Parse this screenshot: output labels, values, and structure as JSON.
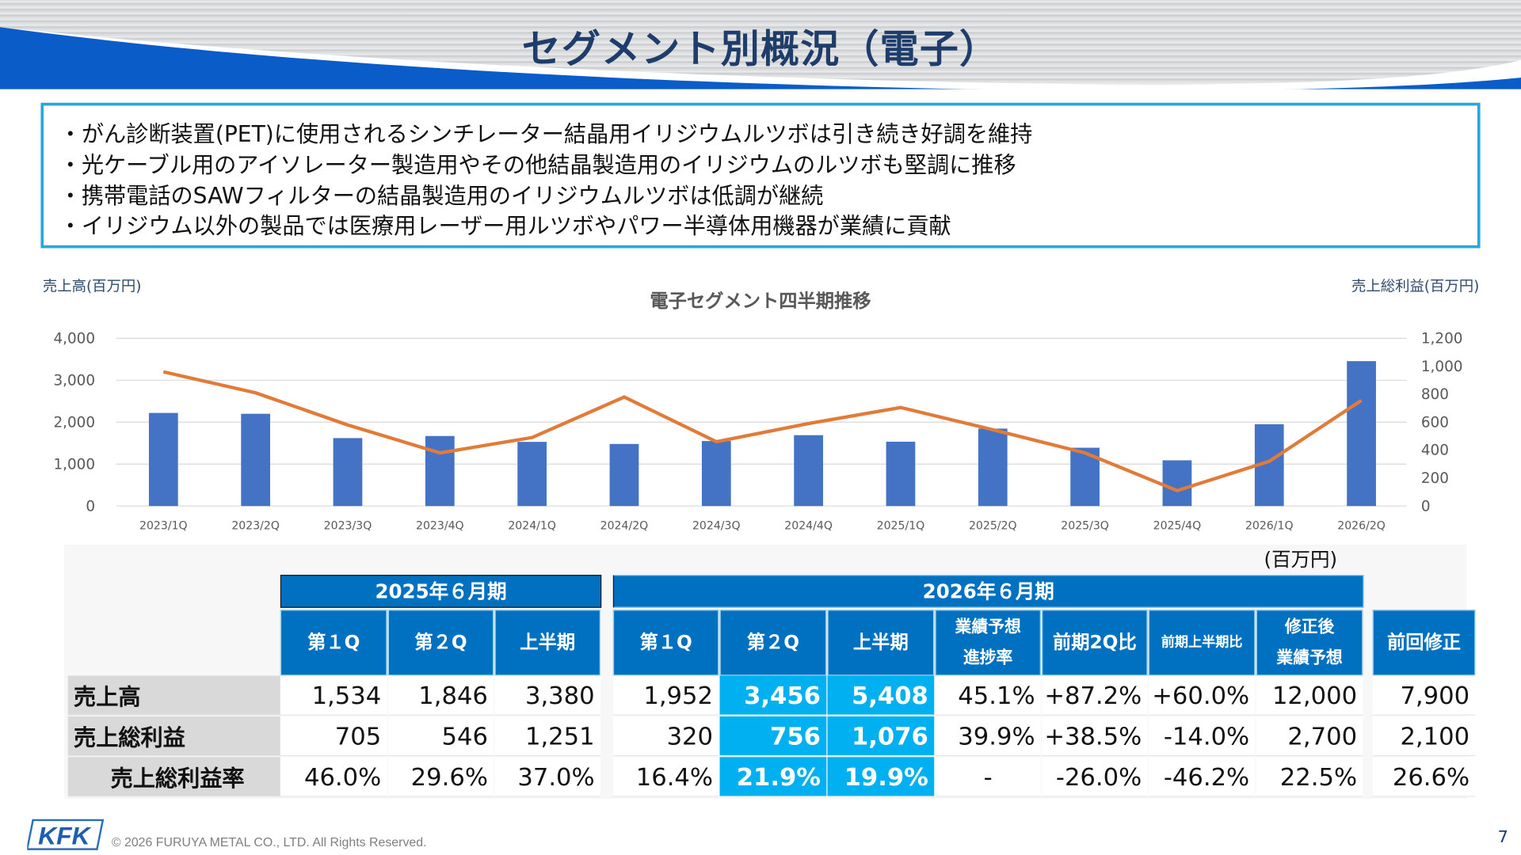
{
  "title": "セグメント別概況（電子）",
  "bullets": [
    "・がん診断装置(PET)に使用されるシンチレーター結晶用イリジウムルツボは引き続き好調を維持",
    "・光ケーブル用のアイソレーター製造用やその他結晶製造用のイリジウムのルツボも堅調に推移",
    "・携帯電話のSAWフィルターの結晶製造用のイリジウムルツボは低調が継続",
    "・イリジウム以外の製品では医療用レーザー用ルツボやパワー半導体用機器が業績に貢献"
  ],
  "chart_data": {
    "type": "bar+line",
    "title": "電子セグメント四半期推移",
    "ylabel_left": "売上高(百万円)",
    "ylabel_right": "売上総利益(百万円)",
    "ylim_left": [
      0,
      4000
    ],
    "yticks_left": [
      "4,000",
      "3,000",
      "2,000",
      "1,000",
      "0"
    ],
    "ylim_right": [
      0,
      1200
    ],
    "yticks_right": [
      "1,200",
      "1,000",
      "800",
      "600",
      "400",
      "200",
      "0"
    ],
    "grid": true,
    "legend_position": "bottom",
    "categories": [
      "2023/1Q",
      "2023/2Q",
      "2023/3Q",
      "2023/4Q",
      "2024/1Q",
      "2024/2Q",
      "2024/3Q",
      "2024/4Q",
      "2025/1Q",
      "2025/2Q",
      "2025/3Q",
      "2025/4Q",
      "2026/1Q",
      "2026/2Q"
    ],
    "series": [
      {
        "name": "売上高",
        "type": "bar",
        "axis": "left",
        "color": "#4472c4",
        "values": [
          2220,
          2200,
          1620,
          1670,
          1530,
          1480,
          1550,
          1690,
          1534,
          1846,
          1390,
          1090,
          1952,
          3456
        ]
      },
      {
        "name": "売上総利益",
        "type": "line",
        "axis": "right",
        "color": "#e07b39",
        "values": [
          960,
          810,
          580,
          380,
          490,
          780,
          460,
          590,
          705,
          546,
          380,
          110,
          320,
          756
        ]
      }
    ]
  },
  "unit_label": "(百万円)",
  "table": {
    "period_prev": "2025年６月期",
    "period_curr": "2026年６月期",
    "columns": [
      "第１Q",
      "第２Q",
      "上半期",
      "第１Q",
      "第２Q",
      "上半期",
      "業績予想\n進捗率",
      "前期2Q比",
      "前期上半期比",
      "修正後\n業績予想",
      "前回修正"
    ],
    "rows": [
      {
        "label": "売上高",
        "values": [
          "1,534",
          "1,846",
          "3,380",
          "1,952",
          "3,456",
          "5,408",
          "45.1%",
          "+87.2%",
          "+60.0%",
          "12,000",
          "7,900"
        ]
      },
      {
        "label": "売上総利益",
        "values": [
          "705",
          "546",
          "1,251",
          "320",
          "756",
          "1,076",
          "39.9%",
          "+38.5%",
          "-14.0%",
          "2,700",
          "2,100"
        ]
      },
      {
        "label": "売上総利益率",
        "values": [
          "46.0%",
          "29.6%",
          "37.0%",
          "16.4%",
          "21.9%",
          "19.9%",
          "-",
          "-26.0%",
          "-46.2%",
          "22.5%",
          "26.6%"
        ]
      }
    ]
  },
  "footer": {
    "logo": "KFK",
    "copyright": "© 2026 FURUYA METAL CO., LTD. All Rights Reserved.",
    "page_number": "7"
  }
}
